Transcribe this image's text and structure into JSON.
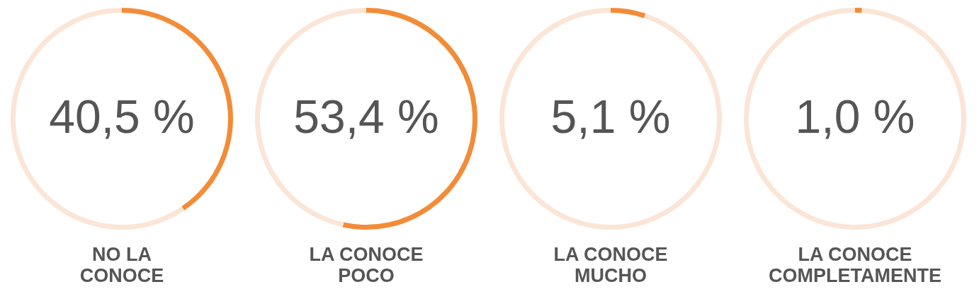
{
  "chart_data": [
    {
      "type": "donut",
      "title": "NO LA CONOCE",
      "categories": [
        null,
        null
      ],
      "values": [
        40.5,
        59.5
      ],
      "colors": [
        "#f28c38",
        "#fbe5d6"
      ],
      "value_labels": [
        "40,5 %",
        null
      ]
    },
    {
      "type": "donut",
      "title": "LA CONOCE POCO",
      "categories": [
        null,
        null
      ],
      "values": [
        53.4,
        46.6
      ],
      "colors": [
        "#f28c38",
        "#fbe5d6"
      ],
      "value_labels": [
        "53,4 %",
        null
      ]
    },
    {
      "type": "donut",
      "title": "LA CONOCE MUCHO",
      "categories": [
        null,
        null
      ],
      "values": [
        5.1,
        94.9
      ],
      "colors": [
        "#f28c38",
        "#fbe5d6"
      ],
      "value_labels": [
        "5,1 %",
        null
      ]
    },
    {
      "type": "donut",
      "title": "LA CONOCE COMPLETAMENTE",
      "categories": [
        null,
        null
      ],
      "values": [
        1.0,
        99.0
      ],
      "colors": [
        "#f28c38",
        "#fbe5d6"
      ],
      "value_labels": [
        "1,0 %",
        null
      ]
    }
  ]
}
